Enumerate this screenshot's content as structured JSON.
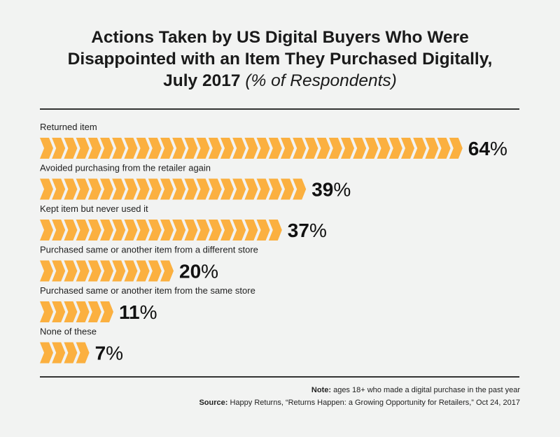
{
  "title": {
    "line1": "Actions Taken by US Digital Buyers Who Were",
    "line2": "Disappointed with an Item They Purchased Digitally,",
    "line3_main": "July 2017",
    "line3_sub": "(% of Respondents)"
  },
  "chart_data": {
    "type": "bar",
    "title": "Actions Taken by US Digital Buyers Who Were Disappointed with an Item They Purchased Digitally, July 2017 (% of Respondents)",
    "categories": [
      "Returned item",
      "Avoided purchasing from the retailer again",
      "Kept item but never used it",
      "Purchased same or another item from a different store",
      "Purchased same or another item from the same store",
      "None of these"
    ],
    "values": [
      64,
      39,
      37,
      20,
      11,
      7
    ],
    "value_labels": [
      "64",
      "39",
      "37",
      "20",
      "11",
      "7"
    ],
    "unit": "%",
    "orientation": "horizontal",
    "bar_color": "#fbb040",
    "xlim": [
      0,
      64
    ]
  },
  "footer": {
    "note_label": "Note:",
    "note_text": "ages 18+ who made a digital purchase in the past year",
    "source_label": "Source:",
    "source_text": "Happy Returns, “Returns Happen: a Growing Opportunity for Retailers,” Oct 24, 2017"
  }
}
